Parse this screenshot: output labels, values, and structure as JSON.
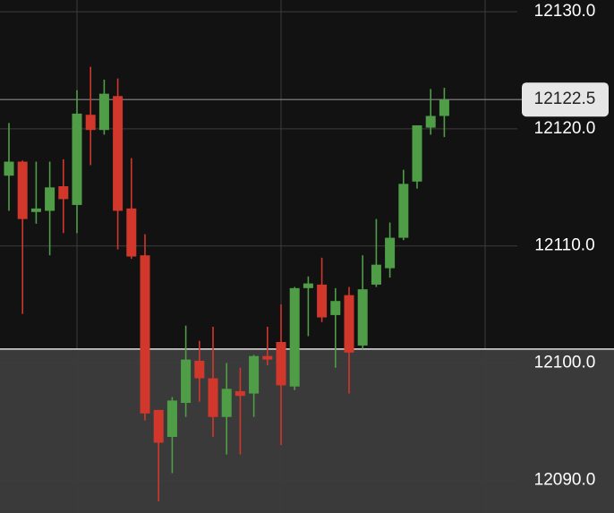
{
  "chart_data": {
    "type": "candlestick",
    "up_color": "#4f9e47",
    "down_color": "#d2372c",
    "grid": true,
    "ylim": [
      12087.2,
      12131.0
    ],
    "yticks": [
      {
        "value": 12130,
        "label": "12130.0"
      },
      {
        "value": 12120,
        "label": "12120.0"
      },
      {
        "value": 12110,
        "label": "12110.0"
      },
      {
        "value": 12100,
        "label": "12100.0"
      },
      {
        "value": 12090,
        "label": "12090.0"
      }
    ],
    "current_price": {
      "value": 12122.5,
      "label": "12122.5"
    },
    "level": 12101.2,
    "open": [
      12116.0,
      12117.2,
      12112.9,
      12113.0,
      12115.1,
      12113.5,
      12121.2,
      12119.9,
      12122.8,
      12113.2,
      12109.2,
      12096.0,
      12093.7,
      12096.6,
      12100.2,
      12098.7,
      12095.4,
      12097.6,
      12097.4,
      12100.6,
      12101.8,
      12098.0,
      12106.4,
      12106.7,
      12104.1,
      12105.8,
      12101.5,
      12106.7,
      12108.1,
      12110.7,
      12115.5,
      12120.1,
      12121.1
    ],
    "close": [
      12117.2,
      12112.3,
      12113.2,
      12115.0,
      12114.0,
      12121.3,
      12119.9,
      12123.0,
      12113.0,
      12109.1,
      12095.7,
      12093.2,
      12096.8,
      12100.3,
      12098.7,
      12095.4,
      12097.8,
      12097.2,
      12100.6,
      12100.3,
      12098.1,
      12106.4,
      12106.8,
      12103.9,
      12105.3,
      12100.9,
      12106.3,
      12108.4,
      12110.7,
      12115.3,
      12120.3,
      12121.1,
      12122.5
    ],
    "high": [
      12120.5,
      12117.3,
      12117.2,
      12117.2,
      12117.4,
      12123.3,
      12125.3,
      12124.2,
      12124.3,
      12117.5,
      12111.0,
      12096.0,
      12097.1,
      12103.2,
      12101.9,
      12103.1,
      12100.0,
      12099.6,
      12100.7,
      12103.1,
      12105.0,
      12106.5,
      12107.4,
      12109.0,
      12106.4,
      12106.5,
      12109.2,
      12112.3,
      12112.0,
      12116.5,
      12120.3,
      12123.4,
      12123.5
    ],
    "low": [
      12113.0,
      12104.2,
      12111.9,
      12109.2,
      12111.1,
      12111.1,
      12116.9,
      12119.5,
      12109.7,
      12108.9,
      12095.1,
      12088.2,
      12090.6,
      12095.4,
      12096.7,
      12093.7,
      12092.2,
      12092.2,
      12095.4,
      12099.8,
      12093.0,
      12097.7,
      12102.3,
      12103.5,
      12099.6,
      12097.4,
      12101.2,
      12106.5,
      12107.3,
      12110.5,
      12114.9,
      12119.5,
      12119.3
    ]
  }
}
